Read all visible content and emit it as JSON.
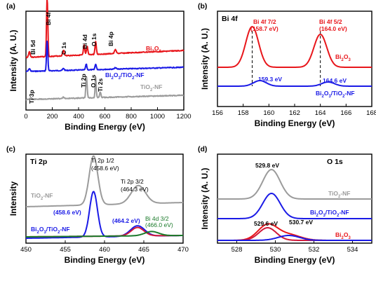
{
  "colors": {
    "red": "#e8161b",
    "blue": "#1a1ae6",
    "gray": "#9b9b9b",
    "black": "#000000",
    "green": "#1a7a2a"
  },
  "chart_data": [
    {
      "panel": "(a)",
      "type": "line",
      "xlabel": "Binding Energy  (eV)",
      "ylabel": "Intensity  (A. U.)",
      "xlim": [
        0,
        1200
      ],
      "xticks": [
        "0",
        "200",
        "400",
        "600",
        "800",
        "1000",
        "1200"
      ],
      "series": [
        {
          "name": "Bi2O3",
          "color": "red"
        },
        {
          "name": "Bi2O3/TiO2-NF",
          "color": "blue"
        },
        {
          "name": "TiO2-NF",
          "color": "gray"
        }
      ],
      "peak_labels": [
        "Bi 5d",
        "Bi 4f",
        "C 1s",
        "Bi 4d",
        "O 1s",
        "Bi 4p",
        "Ti 3p",
        "Ti 2p",
        "O 1s",
        "Ti 2s"
      ],
      "legend_labels": [
        "Bi₂O₃",
        "Bi₂O₃/TiO₂-NF",
        "TiO₂-NF"
      ]
    },
    {
      "panel": "(b)",
      "title": "Bi 4f",
      "type": "line",
      "xlabel": "Binding Energy  (eV)",
      "ylabel": "Intensity  (A. U.)",
      "xlim": [
        156,
        168
      ],
      "xticks": [
        "156",
        "158",
        "160",
        "162",
        "164",
        "166",
        "168"
      ],
      "series": [
        {
          "name": "Bi2O3",
          "color": "red",
          "peaks": [
            158.7,
            164.0
          ]
        },
        {
          "name": "Bi2O3/TiO2-NF",
          "color": "blue",
          "peaks": [
            159.3,
            164.6
          ]
        }
      ],
      "annotations": [
        "Bi 4f 7/2",
        "(158.7 eV)",
        "Bi 4f 5/2",
        "(164.0 eV)",
        "159.3 eV",
        "164.6 eV"
      ],
      "legend_labels": [
        "Bi₂O₃",
        "Bi₂O₃/TiO₂-NF"
      ]
    },
    {
      "panel": "(c)",
      "title": "Ti 2p",
      "type": "line",
      "xlabel": "Binding Energy  (eV)",
      "ylabel": "Intensity",
      "xlim": [
        450,
        470
      ],
      "xticks": [
        "450",
        "455",
        "460",
        "465",
        "470"
      ],
      "series": [
        {
          "name": "TiO2-NF",
          "color": "gray",
          "peaks": [
            458.6,
            464.3
          ]
        },
        {
          "name": "Bi2O3/TiO2-NF",
          "color": "blue",
          "peaks": [
            458.6,
            464.2
          ]
        },
        {
          "name": "Bi 4d 3/2",
          "color": "green",
          "peaks": [
            466.0
          ]
        }
      ],
      "annotations": [
        "Ti 2p 1/2",
        "(458.6 eV)",
        "Ti 2p 3/2",
        "(464.3 eV)",
        "(458.6 eV)",
        "(464.2 eV)",
        "Bi 4d 3/2",
        "(466.0 eV)"
      ],
      "legend_labels": [
        "TiO₂-NF",
        "Bi₂O₃/TiO₂-NF"
      ]
    },
    {
      "panel": "(d)",
      "title": "O 1s",
      "type": "line",
      "xlabel": "Binding Energy  (eV)",
      "ylabel": "Intensity  (A. U.)",
      "xlim": [
        527,
        535
      ],
      "xticks": [
        "528",
        "530",
        "532",
        "534"
      ],
      "series": [
        {
          "name": "TiO2-NF",
          "color": "gray",
          "peaks": [
            529.8
          ]
        },
        {
          "name": "Bi2O3/TiO2-NF",
          "color": "blue",
          "peaks": [
            529.8
          ]
        },
        {
          "name": "Bi2O3",
          "color": "red",
          "peaks": [
            529.6,
            530.7
          ]
        }
      ],
      "annotations": [
        "529.8 eV",
        "529.6 eV",
        "530.7 eV"
      ],
      "legend_labels": [
        "TiO₂-NF",
        "Bi₂O₃/TiO₂-NF",
        "Bi₂O₃"
      ]
    }
  ]
}
